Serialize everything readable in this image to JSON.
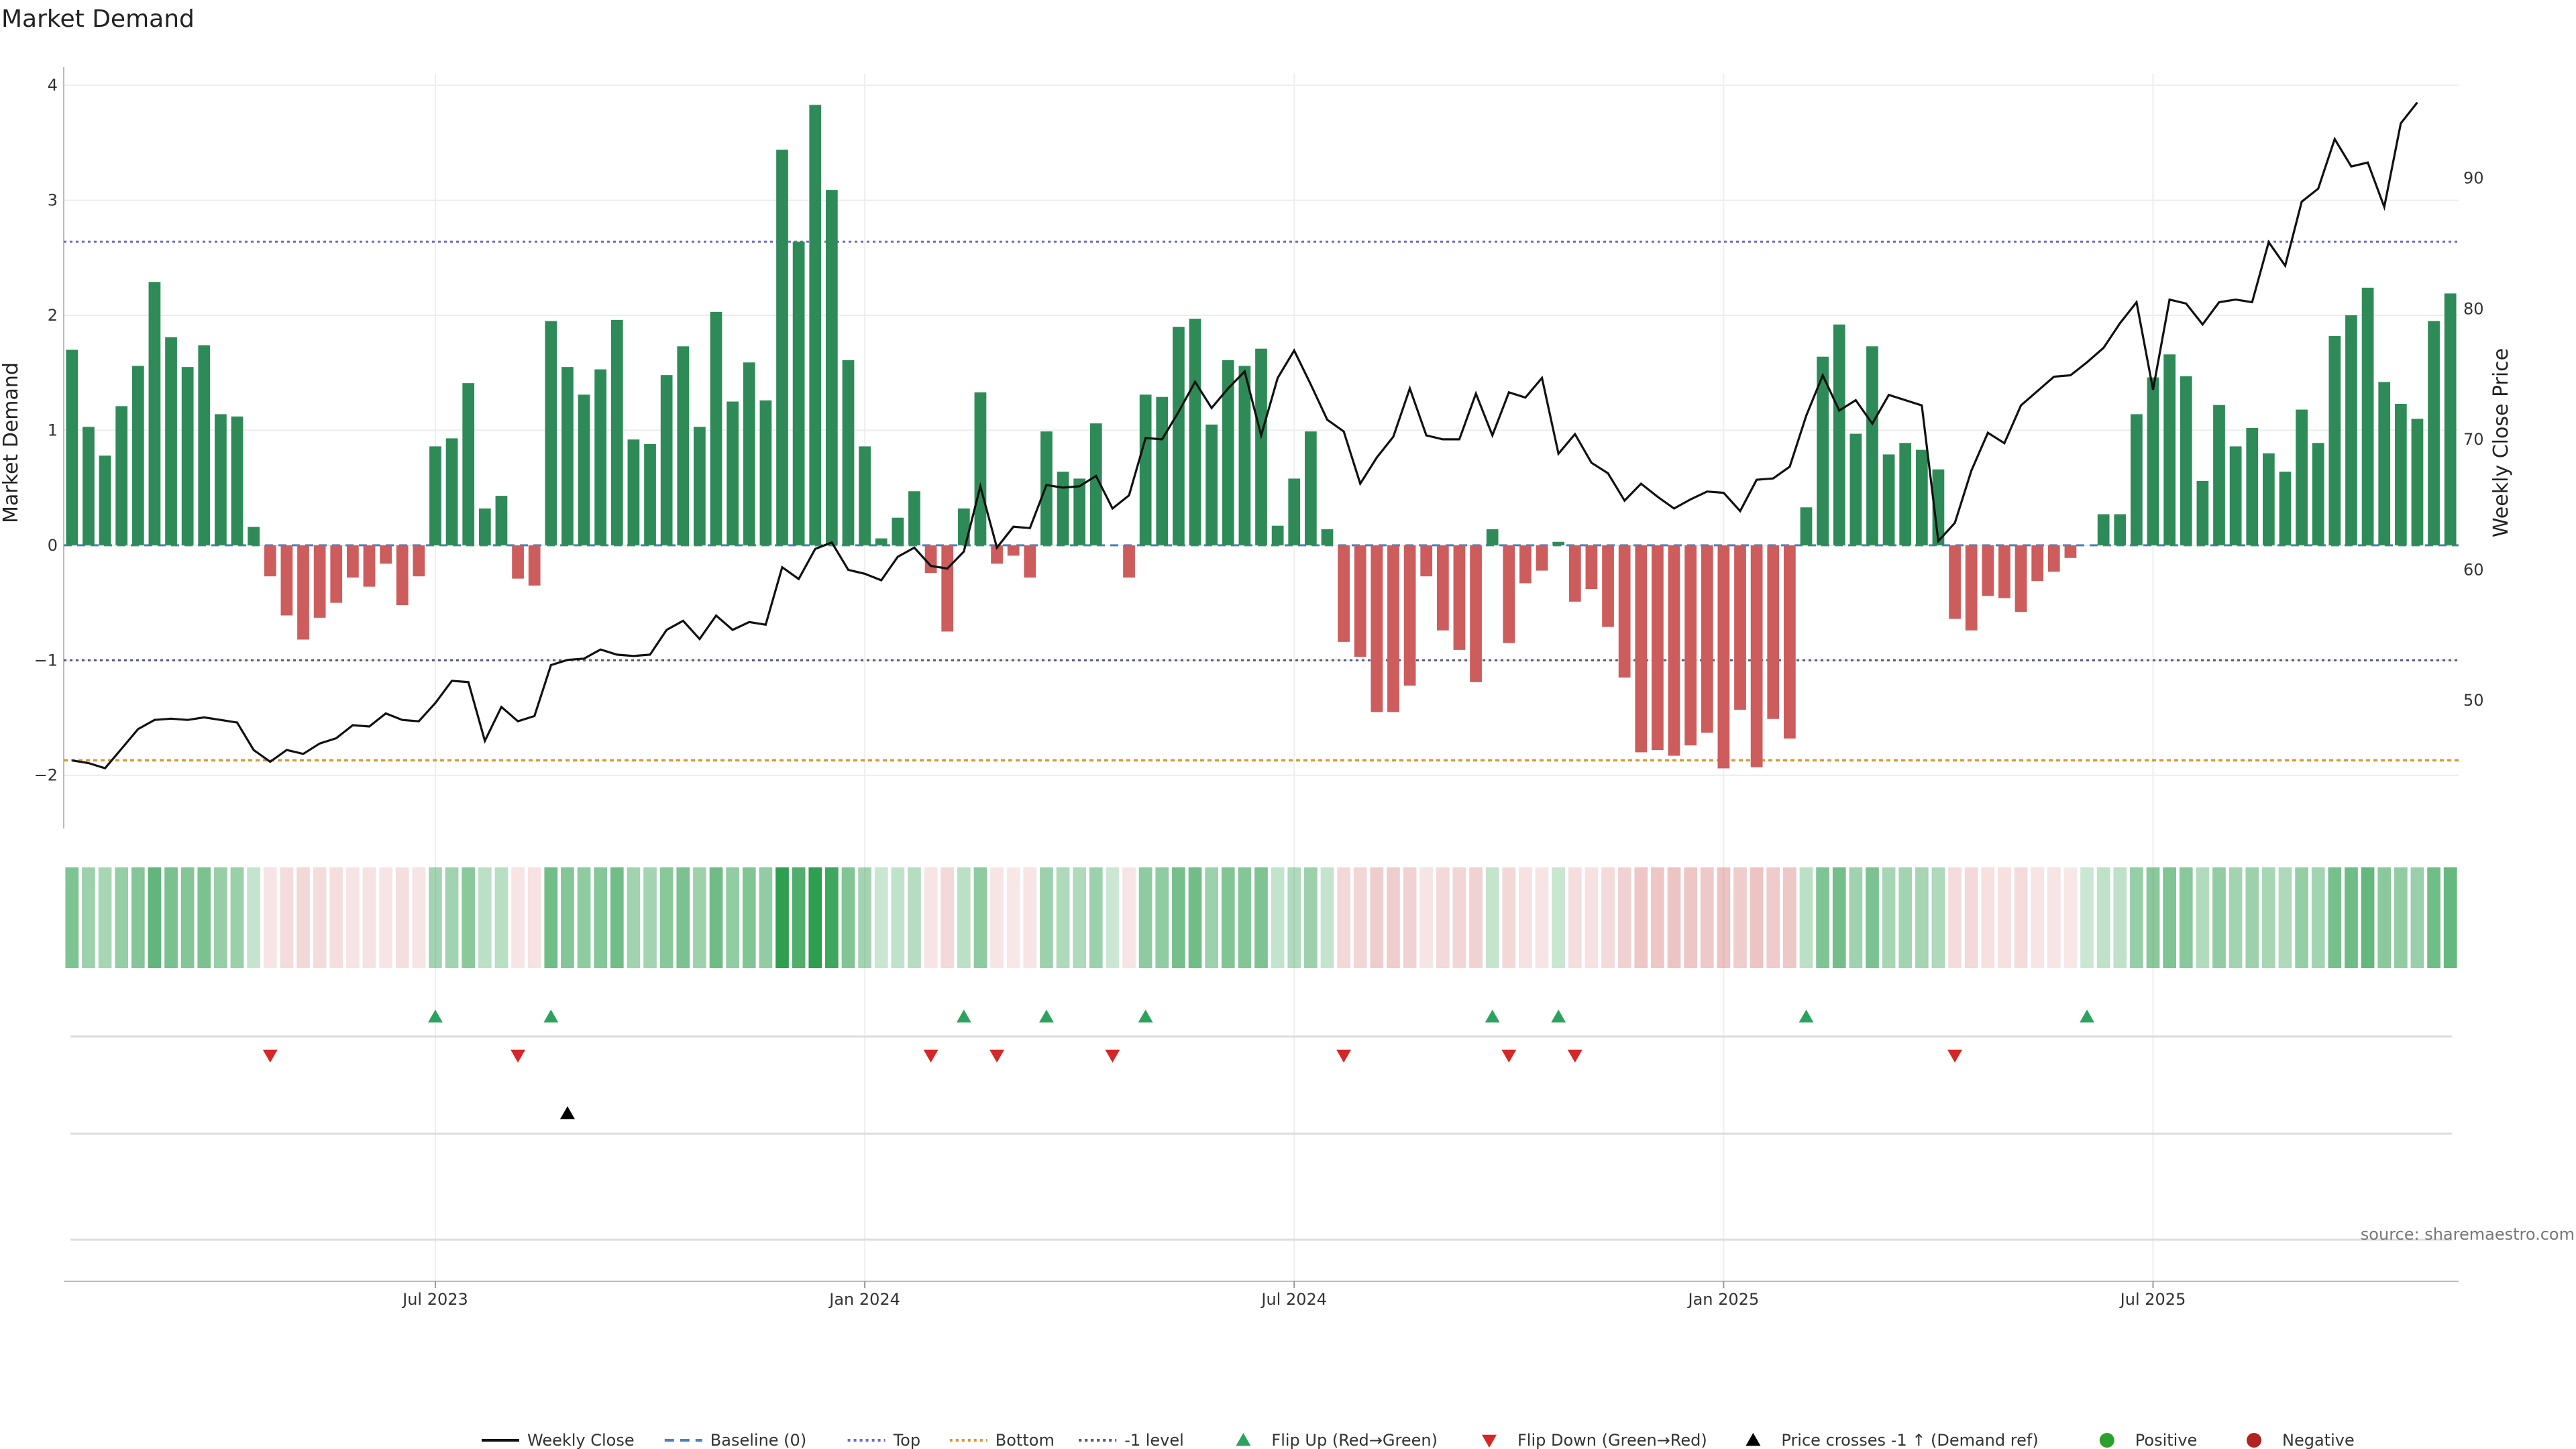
{
  "chart_data": {
    "type": "bar",
    "title": "Market Demand",
    "ylabel": "Market Demand",
    "y2label": "Weekly Close Price",
    "source": "source: sharemaestro.com",
    "ylim": [
      -2.2,
      4.1
    ],
    "y2lim": [
      42.5,
      98
    ],
    "yticks": [
      -2,
      -1,
      0,
      1,
      2,
      3,
      4
    ],
    "y2ticks": [
      50,
      60,
      70,
      80,
      90
    ],
    "xtick_labels": [
      "Jul 2023",
      "Jan 2024",
      "Jul 2024",
      "Jan 2025",
      "Jul 2025"
    ],
    "xtick_index": [
      22,
      48,
      74,
      100,
      126
    ],
    "levels": {
      "baseline": 0,
      "top": 2.64,
      "bottom": -1.87,
      "minus_one": -1
    },
    "legend_position": "bottom",
    "legend": [
      {
        "label": "Weekly Close",
        "kind": "line",
        "color": "#111111"
      },
      {
        "label": "Baseline (0)",
        "kind": "dash",
        "color": "#4a7fc1"
      },
      {
        "label": "Top",
        "kind": "dot",
        "color": "#6a6ad0"
      },
      {
        "label": "Bottom",
        "kind": "dot",
        "color": "#e0952b"
      },
      {
        "label": "-1 level",
        "kind": "dot",
        "color": "#555577"
      },
      {
        "label": "Flip Up (Red→Green)",
        "kind": "tri-up",
        "color": "#2ca25f"
      },
      {
        "label": "Flip Down (Green→Red)",
        "kind": "tri-down",
        "color": "#d62728"
      },
      {
        "label": "Price crosses -1 ↑ (Demand ref)",
        "kind": "tri-up",
        "color": "#000000"
      },
      {
        "label": "Positive",
        "kind": "dot-marker",
        "color": "#2ca02c"
      },
      {
        "label": "Negative",
        "kind": "dot-marker",
        "color": "#b22222"
      }
    ],
    "colors": {
      "positive_bar": "#2e8b57",
      "negative_bar": "#cd5c5c",
      "price_line": "#111111",
      "heat_pos": "#2e9e4f",
      "heat_neg": "#cd5c5c"
    },
    "demand": [
      1.7,
      1.03,
      0.78,
      1.21,
      1.56,
      2.29,
      1.81,
      1.55,
      1.74,
      1.14,
      1.12,
      0.16,
      -0.27,
      -0.61,
      -0.82,
      -0.63,
      -0.5,
      -0.28,
      -0.36,
      -0.16,
      -0.52,
      -0.27,
      0.86,
      0.93,
      1.41,
      0.32,
      0.43,
      -0.29,
      -0.35,
      1.95,
      1.55,
      1.31,
      1.53,
      1.96,
      0.92,
      0.88,
      1.48,
      1.73,
      1.03,
      2.03,
      1.25,
      1.59,
      1.26,
      3.44,
      2.64,
      3.83,
      3.09,
      1.61,
      0.86,
      0.06,
      0.24,
      0.47,
      -0.24,
      -0.75,
      0.32,
      1.33,
      -0.16,
      -0.09,
      -0.28,
      0.99,
      0.64,
      0.58,
      1.06,
      0,
      -0.28,
      1.31,
      1.29,
      1.9,
      1.97,
      1.05,
      1.61,
      1.56,
      1.71,
      0.17,
      0.58,
      0.99,
      0.14,
      -0.84,
      -0.97,
      -1.45,
      -1.45,
      -1.22,
      -0.27,
      -0.74,
      -0.91,
      -1.19,
      0.14,
      -0.85,
      -0.33,
      -0.22,
      0.03,
      -0.49,
      -0.38,
      -0.71,
      -1.15,
      -1.8,
      -1.78,
      -1.83,
      -1.74,
      -1.63,
      -1.94,
      -1.43,
      -1.93,
      -1.51,
      -1.68,
      0.33,
      1.64,
      1.92,
      0.97,
      1.73,
      0.79,
      0.89,
      0.83,
      0.66,
      -0.64,
      -0.74,
      -0.44,
      -0.46,
      -0.58,
      -0.31,
      -0.23,
      -0.11,
      0,
      0.27,
      0.27,
      1.14,
      1.46,
      1.66,
      1.47,
      0.56,
      1.22,
      0.86,
      1.02,
      0.8,
      0.64,
      1.18,
      0.89,
      1.82,
      2.0,
      2.24,
      1.42,
      1.23,
      1.1,
      1.95,
      2.19
    ],
    "price": [
      45.4,
      45.2,
      44.8,
      46.3,
      47.8,
      48.5,
      48.6,
      48.5,
      48.7,
      48.5,
      48.3,
      46.2,
      45.3,
      46.2,
      45.9,
      46.7,
      47.1,
      48.1,
      48.0,
      49.0,
      48.5,
      48.4,
      49.8,
      51.5,
      51.4,
      46.9,
      49.5,
      48.4,
      48.8,
      52.7,
      53.1,
      53.2,
      53.9,
      53.5,
      53.4,
      53.5,
      55.4,
      56.1,
      54.7,
      56.5,
      55.4,
      56.0,
      55.8,
      60.2,
      59.3,
      61.6,
      62.1,
      60.0,
      59.7,
      59.2,
      61.0,
      61.7,
      60.3,
      60.1,
      61.4,
      66.4,
      61.7,
      63.3,
      63.2,
      66.5,
      66.3,
      66.4,
      67.2,
      64.7,
      65.7,
      70.1,
      70.0,
      72.1,
      74.4,
      72.4,
      73.9,
      75.2,
      70.3,
      74.7,
      76.8,
      74.2,
      71.5,
      70.6,
      66.6,
      68.6,
      70.2,
      73.9,
      70.3,
      70.0,
      70.0,
      73.5,
      70.3,
      73.6,
      73.2,
      74.7,
      68.9,
      70.4,
      68.2,
      67.4,
      65.3,
      66.6,
      65.6,
      64.7,
      65.4,
      66.0,
      65.9,
      64.5,
      66.9,
      67.0,
      67.9,
      71.8,
      74.9,
      72.2,
      73.0,
      71.2,
      73.4,
      73.0,
      72.6,
      62.2,
      63.6,
      67.6,
      70.5,
      69.7,
      72.6,
      73.7,
      74.8,
      74.9,
      75.9,
      77.0,
      78.9,
      80.5,
      73.8,
      80.7,
      80.4,
      78.8,
      80.5,
      80.7,
      80.5,
      85.1,
      83.3,
      88.2,
      89.2,
      93.0,
      90.9,
      91.2,
      87.8,
      94.2,
      95.8
    ],
    "flip_up_index": [
      22,
      29,
      54,
      59,
      65,
      86,
      90,
      105,
      122
    ],
    "flip_down_index": [
      12,
      27,
      52,
      56,
      63,
      77,
      87,
      91,
      114
    ],
    "price_cross_index": [
      30
    ]
  }
}
